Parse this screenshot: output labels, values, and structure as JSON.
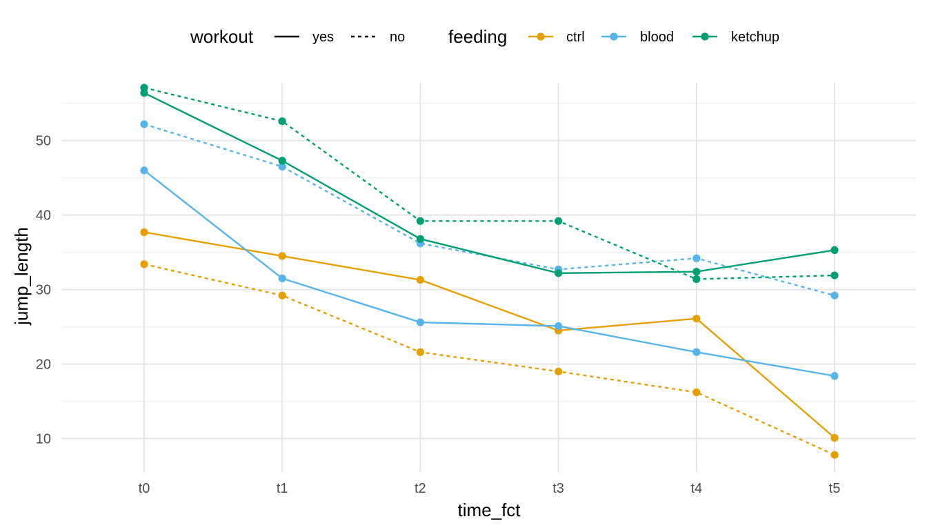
{
  "chart_data": {
    "type": "line",
    "xlabel": "time_fct",
    "ylabel": "jump_length",
    "categories": [
      "t0",
      "t1",
      "t2",
      "t3",
      "t4",
      "t5"
    ],
    "ylim": [
      5.5,
      58.5
    ],
    "y_ticks": [
      10,
      20,
      30,
      40,
      50
    ],
    "grid": true,
    "legend_position": "top",
    "legends": {
      "workout": {
        "title": "workout",
        "items": [
          {
            "label": "yes",
            "linetype": "solid"
          },
          {
            "label": "no",
            "linetype": "dashed"
          }
        ]
      },
      "feeding": {
        "title": "feeding",
        "items": [
          {
            "label": "ctrl",
            "color": "#E69F00"
          },
          {
            "label": "blood",
            "color": "#56B4E9"
          },
          {
            "label": "ketchup",
            "color": "#009E73"
          }
        ]
      }
    },
    "series": [
      {
        "feeding": "ctrl",
        "workout": "yes",
        "color": "#E69F00",
        "linetype": "solid",
        "values": [
          37.7,
          34.5,
          31.3,
          24.5,
          26.1,
          10.1
        ]
      },
      {
        "feeding": "ctrl",
        "workout": "no",
        "color": "#E69F00",
        "linetype": "dashed",
        "values": [
          33.4,
          29.2,
          21.6,
          19.0,
          16.2,
          7.8
        ]
      },
      {
        "feeding": "blood",
        "workout": "yes",
        "color": "#56B4E9",
        "linetype": "solid",
        "values": [
          46.0,
          31.5,
          25.6,
          25.1,
          21.6,
          18.4
        ]
      },
      {
        "feeding": "blood",
        "workout": "no",
        "color": "#56B4E9",
        "linetype": "dashed",
        "values": [
          52.2,
          46.5,
          36.2,
          32.7,
          34.2,
          29.2
        ]
      },
      {
        "feeding": "ketchup",
        "workout": "yes",
        "color": "#009E73",
        "linetype": "solid",
        "values": [
          56.4,
          47.3,
          36.8,
          32.2,
          32.4,
          35.3
        ]
      },
      {
        "feeding": "ketchup",
        "workout": "no",
        "color": "#009E73",
        "linetype": "dashed",
        "values": [
          57.1,
          52.6,
          39.2,
          39.2,
          31.4,
          31.9
        ]
      }
    ]
  }
}
